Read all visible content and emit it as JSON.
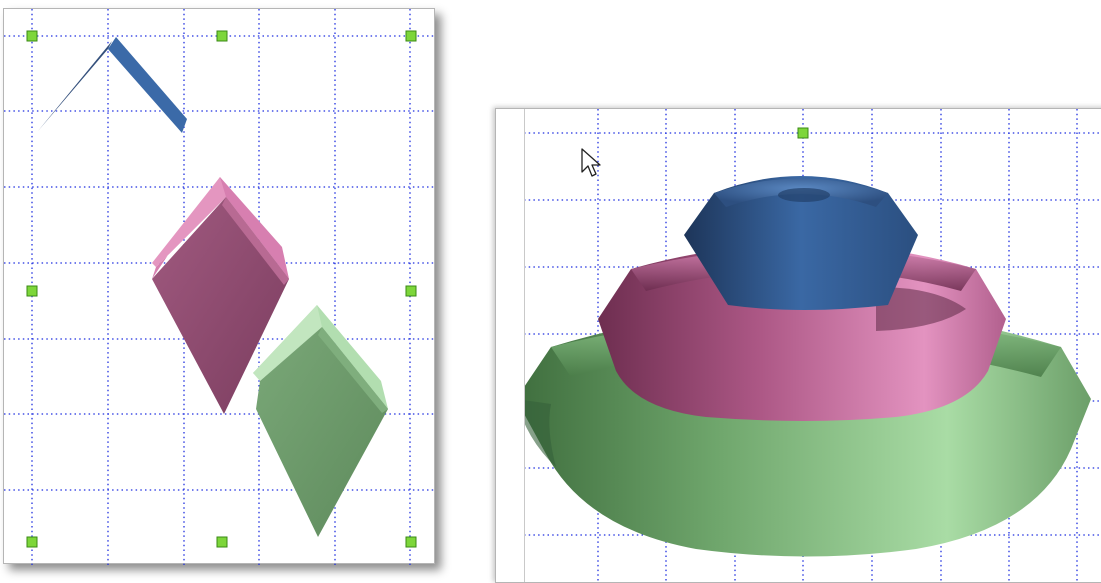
{
  "canvas_left": {
    "name": "2d-shape-canvas",
    "colors": {
      "grid": "#1f2fe0",
      "handle": "#7dd63a",
      "blue": "#3b6aa8",
      "pink": "#c8649a",
      "green": "#8cc48c"
    }
  },
  "canvas_right": {
    "name": "3d-shape-canvas",
    "colors": {
      "grid": "#1f2fe0",
      "handle": "#7dd63a",
      "blue": "#3b6aa8",
      "pink": "#c8649a",
      "green": "#8cc48c"
    }
  },
  "cursor": {
    "icon": "arrow-pointer-icon"
  }
}
